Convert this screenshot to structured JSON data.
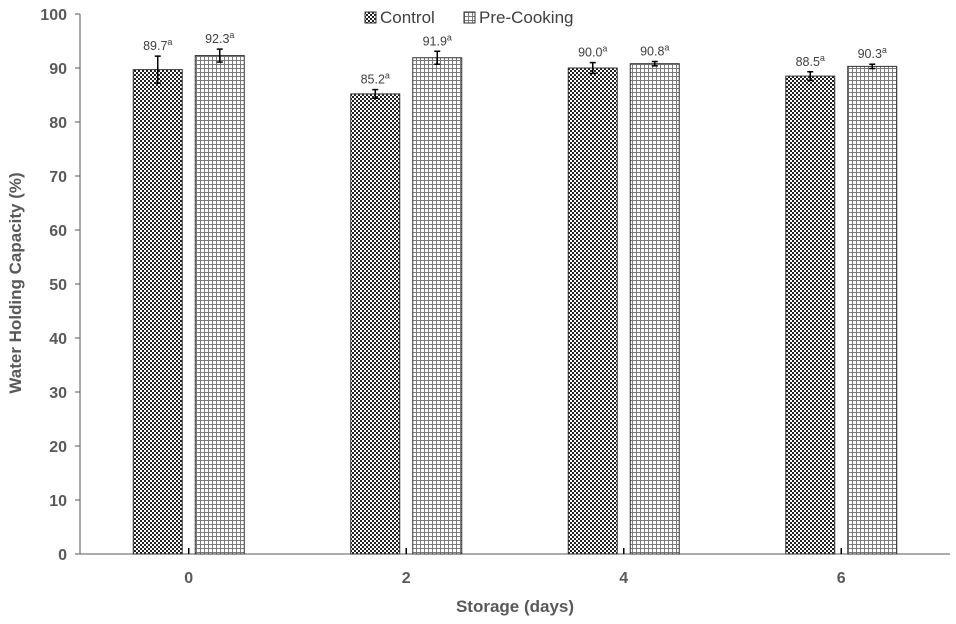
{
  "chart_data": {
    "type": "bar",
    "xlabel": "Storage (days)",
    "ylabel": "Water Holding Capacity (%)",
    "ylim": [
      0,
      100
    ],
    "yticks": [
      0,
      10,
      20,
      30,
      40,
      50,
      60,
      70,
      80,
      90,
      100
    ],
    "categories": [
      "0",
      "2",
      "4",
      "6"
    ],
    "legend_position": "top-center",
    "grid": false,
    "series": [
      {
        "name": "Control",
        "pattern": "checkerboard",
        "values": [
          89.7,
          85.2,
          90.0,
          88.5
        ],
        "errors": [
          2.5,
          0.8,
          1.0,
          0.8
        ],
        "labels": [
          "89.7",
          "85.2",
          "90.0",
          "88.5"
        ],
        "superscripts": [
          "a",
          "a",
          "a",
          "a"
        ]
      },
      {
        "name": "Pre-Cooking",
        "pattern": "grid",
        "values": [
          92.3,
          91.9,
          90.8,
          90.3
        ],
        "errors": [
          1.2,
          1.2,
          0.4,
          0.4
        ],
        "labels": [
          "92.3",
          "91.9",
          "90.8",
          "90.3"
        ],
        "superscripts": [
          "a",
          "a",
          "a",
          "a"
        ]
      }
    ],
    "colors": {
      "axis": "#595959",
      "text": "#404040",
      "bar_stroke": "#333333",
      "error": "#000000"
    }
  }
}
